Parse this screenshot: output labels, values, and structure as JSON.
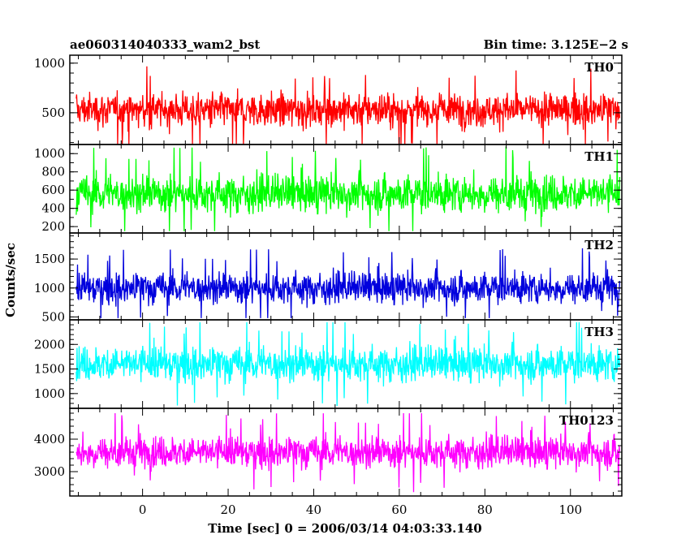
{
  "chart_data": {
    "type": "line",
    "title_left": "ae060314040333_wam2_bst",
    "title_right": "Bin time: 3.125E−2 s",
    "xlabel": "Time [sec] 0 = 2006/03/14 04:03:33.140",
    "ylabel": "Counts/sec",
    "xlim": [
      -17,
      112
    ],
    "x_ticks": [
      0,
      20,
      40,
      60,
      80,
      100
    ],
    "x_tick_labels": [
      "0",
      "20",
      "40",
      "60",
      "80",
      "100"
    ],
    "x_minor_step": 5,
    "data_x_range": [
      -15.5,
      111.5
    ],
    "series": [
      {
        "name": "TH0",
        "color": "#ff0000",
        "ylim": [
          180,
          1080
        ],
        "y_ticks": [
          500,
          1000
        ],
        "y_tick_labels": [
          "500",
          "1000"
        ],
        "y_minor_step": 100,
        "mean": 530,
        "typical_range": [
          280,
          800
        ],
        "extreme_range": [
          180,
          1080
        ]
      },
      {
        "name": "TH1",
        "color": "#00ff00",
        "ylim": [
          130,
          1100
        ],
        "y_ticks": [
          200,
          400,
          600,
          800,
          1000
        ],
        "y_tick_labels": [
          "200",
          "400",
          "600",
          "800",
          "1000"
        ],
        "y_minor_step": 100,
        "mean": 560,
        "typical_range": [
          250,
          880
        ],
        "extreme_range": [
          150,
          1100
        ]
      },
      {
        "name": "TH2",
        "color": "#0000dd",
        "ylim": [
          450,
          1950
        ],
        "y_ticks": [
          500,
          1000,
          1500
        ],
        "y_tick_labels": [
          "500",
          "1000",
          "1500"
        ],
        "y_minor_step": 100,
        "mean": 1000,
        "typical_range": [
          620,
          1450
        ],
        "extreme_range": [
          480,
          1950
        ]
      },
      {
        "name": "TH3",
        "color": "#00ffff",
        "ylim": [
          700,
          2500
        ],
        "y_ticks": [
          1000,
          1500,
          2000
        ],
        "y_tick_labels": [
          "1000",
          "1500",
          "2000"
        ],
        "y_minor_step": 100,
        "mean": 1600,
        "typical_range": [
          1050,
          2150
        ],
        "extreme_range": [
          750,
          2450
        ]
      },
      {
        "name": "TH0123",
        "color": "#ff00ff",
        "ylim": [
          2250,
          4950
        ],
        "y_ticks": [
          3000,
          4000
        ],
        "y_tick_labels": [
          "3000",
          "4000"
        ],
        "y_minor_step": 200,
        "mean": 3600,
        "typical_range": [
          2850,
          4350
        ],
        "extreme_range": [
          2300,
          4800
        ]
      }
    ]
  }
}
